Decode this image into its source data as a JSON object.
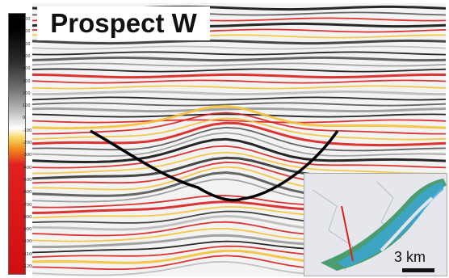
{
  "title": "Prospect W",
  "colorbar_ticks": [
    "800",
    "700",
    "600",
    "500",
    "400",
    "300",
    "200",
    "100",
    "0",
    "-100",
    "-200",
    "-300",
    "-400",
    "-500",
    "-600",
    "-700",
    "-800",
    "-900",
    "-1000",
    "-1100",
    "-1200"
  ],
  "inset_map": {
    "scale_label": "3 km"
  },
  "colors": {
    "reflector_red": "#d81f1f",
    "reflector_yellow": "#f4c23a",
    "reflector_black": "#111111",
    "profile_line": "#e02020",
    "trap_outline": "#000000"
  }
}
